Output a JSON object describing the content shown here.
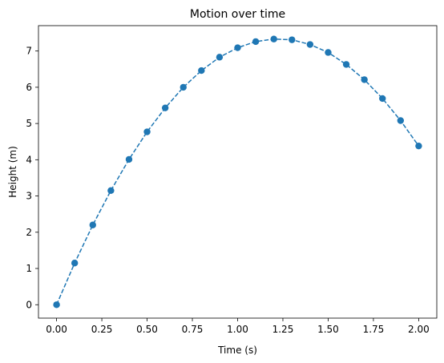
{
  "chart_data": {
    "type": "line",
    "title": "Motion over time",
    "xlabel": "Time (s)",
    "ylabel": "Height (m)",
    "xlim": [
      -0.1,
      2.1
    ],
    "ylim": [
      -0.37,
      7.7
    ],
    "xticks": [
      0.0,
      0.25,
      0.5,
      0.75,
      1.0,
      1.25,
      1.5,
      1.75,
      2.0
    ],
    "xtick_labels": [
      "0.00",
      "0.25",
      "0.50",
      "0.75",
      "1.00",
      "1.25",
      "1.50",
      "1.75",
      "2.00"
    ],
    "yticks": [
      0,
      1,
      2,
      3,
      4,
      5,
      6,
      7
    ],
    "ytick_labels": [
      "0",
      "1",
      "2",
      "3",
      "4",
      "5",
      "6",
      "7"
    ],
    "grid": false,
    "series": [
      {
        "color": "#1f77b4",
        "line_style": "dashed",
        "marker": "circle",
        "x": [
          0.0,
          0.1,
          0.2,
          0.3,
          0.4,
          0.5,
          0.6,
          0.7,
          0.8,
          0.9,
          1.0,
          1.1,
          1.2,
          1.3,
          1.4,
          1.5,
          1.6,
          1.7,
          1.8,
          1.9,
          2.0
        ],
        "y": [
          0.0,
          1.15,
          2.2,
          3.15,
          4.01,
          4.77,
          5.43,
          6.0,
          6.46,
          6.83,
          7.09,
          7.26,
          7.33,
          7.31,
          7.18,
          6.96,
          6.63,
          6.21,
          5.69,
          5.08,
          4.38
        ]
      }
    ]
  }
}
